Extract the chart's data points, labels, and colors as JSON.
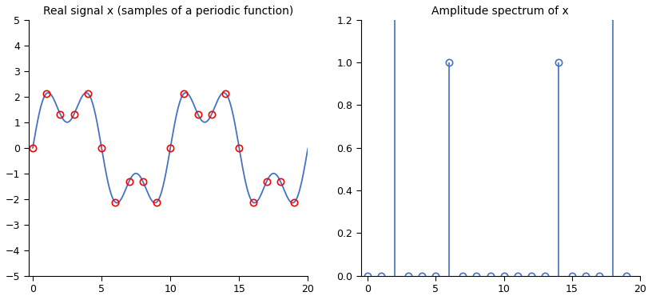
{
  "N": 20,
  "title_left": "Real signal x (samples of a periodic function)",
  "title_right": "Amplitude spectrum of x",
  "signal_color": "#4472C4",
  "marker_color": "#FF0000",
  "stem_color": "#4472C4",
  "xlim_left": [
    -0.3,
    20
  ],
  "ylim_left": [
    -5,
    5
  ],
  "xlim_right": [
    -0.5,
    20
  ],
  "ylim_right": [
    0,
    1.2
  ],
  "yticks_left": [
    -5,
    -4,
    -3,
    -2,
    -1,
    0,
    1,
    2,
    3,
    4,
    5
  ],
  "yticks_right": [
    0.0,
    0.2,
    0.4,
    0.6,
    0.8,
    1.0,
    1.2
  ],
  "xticks_left": [
    0,
    5,
    10,
    15,
    20
  ],
  "xticks_right": [
    0,
    5,
    10,
    15,
    20
  ],
  "freq_components": [
    2,
    6
  ],
  "amplitudes": [
    2.0,
    1.0
  ],
  "phases": [
    0.0,
    0.0
  ],
  "use_sine": true,
  "figsize": [
    8.16,
    3.75
  ],
  "dpi": 100
}
